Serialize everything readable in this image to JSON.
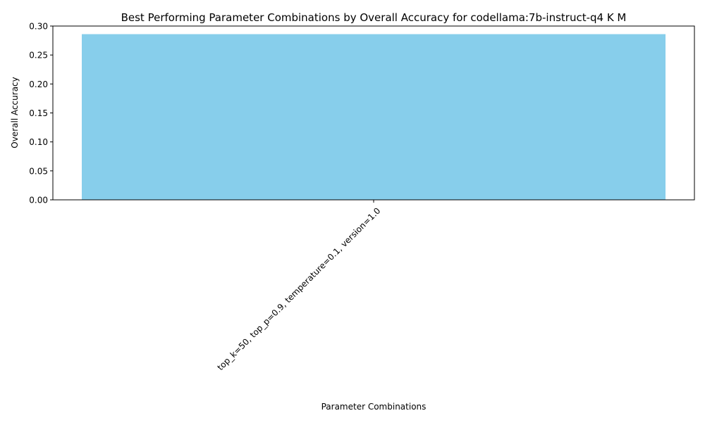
{
  "chart_data": {
    "type": "bar",
    "title": "Best Performing Parameter Combinations by Overall Accuracy for codellama:7b-instruct-q4 K M",
    "xlabel": "Parameter Combinations",
    "ylabel": "Overall Accuracy",
    "categories": [
      "top_k=50, top_p=0.9, temperature=0.1, version=1.0"
    ],
    "values": [
      0.286
    ],
    "ylim": [
      0,
      0.3
    ],
    "yticks": [
      {
        "value": 0.0,
        "label": "0.00"
      },
      {
        "value": 0.05,
        "label": "0.05"
      },
      {
        "value": 0.1,
        "label": "0.10"
      },
      {
        "value": 0.15,
        "label": "0.15"
      },
      {
        "value": 0.2,
        "label": "0.20"
      },
      {
        "value": 0.25,
        "label": "0.25"
      },
      {
        "value": 0.3,
        "label": "0.30"
      }
    ],
    "bar_color": "#87CEEB",
    "grid": false,
    "legend": "none"
  }
}
